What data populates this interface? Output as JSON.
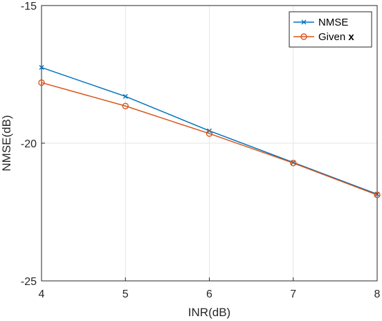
{
  "chart_data": {
    "type": "line",
    "xlabel": "INR(dB)",
    "ylabel": "NMSE(dB)",
    "xlim": [
      4,
      8
    ],
    "ylim": [
      -25,
      -15
    ],
    "xticks": [
      4,
      5,
      6,
      7,
      8
    ],
    "yticks": [
      -25,
      -20,
      -15
    ],
    "grid": true,
    "legend_position": "top-right",
    "x": [
      4,
      5,
      6,
      7,
      8
    ],
    "series": [
      {
        "name": "NMSE",
        "values": [
          -17.25,
          -18.3,
          -19.55,
          -20.7,
          -21.85
        ],
        "color": "#0072BD",
        "marker": "x-mark"
      },
      {
        "name": "Given x",
        "name_prefix": "Given ",
        "name_bold": "x",
        "values": [
          -17.8,
          -18.65,
          -19.65,
          -20.72,
          -21.88
        ],
        "color": "#D95319",
        "marker": "circle"
      }
    ]
  }
}
